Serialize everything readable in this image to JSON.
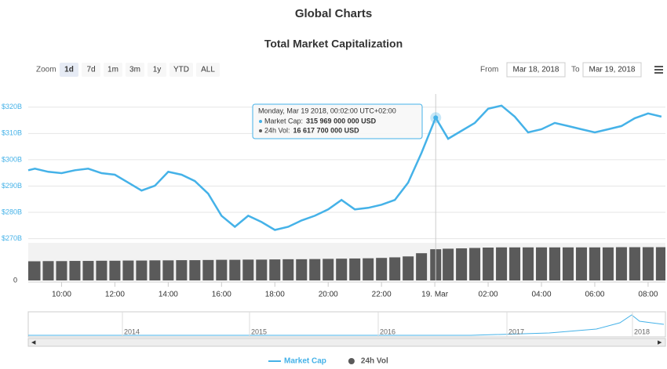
{
  "chart_data": {
    "type": "line",
    "title": "Global Charts",
    "subtitle": "Total Market Capitalization",
    "x": [
      8.75,
      9,
      9.5,
      10,
      10.5,
      11,
      11.5,
      12,
      12.5,
      13,
      13.5,
      14,
      14.5,
      15,
      15.5,
      16,
      16.5,
      17,
      17.5,
      18,
      18.5,
      19,
      19.5,
      20,
      20.5,
      21,
      21.5,
      22,
      22.5,
      23,
      23.5,
      24.033,
      24.5,
      25,
      25.5,
      26,
      26.5,
      27,
      27.5,
      28,
      28.5,
      29,
      29.5,
      30,
      30.5,
      31,
      31.5,
      32,
      32.5
    ],
    "xlim": [
      8.75,
      32.65
    ],
    "xticks": [
      {
        "value": 10,
        "label": "10:00"
      },
      {
        "value": 12,
        "label": "12:00"
      },
      {
        "value": 14,
        "label": "14:00"
      },
      {
        "value": 16,
        "label": "16:00"
      },
      {
        "value": 18,
        "label": "18:00"
      },
      {
        "value": 20,
        "label": "20:00"
      },
      {
        "value": 22,
        "label": "22:00"
      },
      {
        "value": 24,
        "label": "19. Mar"
      },
      {
        "value": 26,
        "label": "02:00"
      },
      {
        "value": 28,
        "label": "04:00"
      },
      {
        "value": 30,
        "label": "06:00"
      },
      {
        "value": 32,
        "label": "08:00"
      }
    ],
    "ylim": [
      266,
      325
    ],
    "yticks": [
      {
        "value": 270,
        "label": "$270B"
      },
      {
        "value": 280,
        "label": "$280B"
      },
      {
        "value": 290,
        "label": "$290B"
      },
      {
        "value": 300,
        "label": "$300B"
      },
      {
        "value": 310,
        "label": "$310B"
      },
      {
        "value": 320,
        "label": "$320B"
      }
    ],
    "y2lim": [
      0,
      20
    ],
    "y2ticks": [
      0
    ],
    "grid": true,
    "series": [
      {
        "name": "Market Cap",
        "color": "#45b2e8",
        "values": [
          296.0,
          296.6,
          295.4,
          294.9,
          296.0,
          296.6,
          294.9,
          294.3,
          291.3,
          288.3,
          290.1,
          295.4,
          294.3,
          291.9,
          287.1,
          278.7,
          274.5,
          278.7,
          276.3,
          273.3,
          274.5,
          276.9,
          278.7,
          281.1,
          284.7,
          281.1,
          281.7,
          282.9,
          284.7,
          291.3,
          302.6,
          315.969,
          308.0,
          311.0,
          314.0,
          319.4,
          320.6,
          316.4,
          310.4,
          311.6,
          314.0,
          312.8,
          311.6,
          310.4,
          311.6,
          312.8,
          315.8,
          317.6,
          316.4
        ]
      },
      {
        "name": "24h Vol",
        "color": "#5a5a5a",
        "axis": "y2",
        "values": [
          10.2,
          10.2,
          10.3,
          10.3,
          10.4,
          10.4,
          10.5,
          10.5,
          10.6,
          10.6,
          10.7,
          10.7,
          10.8,
          10.8,
          10.9,
          11.0,
          11.0,
          11.1,
          11.1,
          11.2,
          11.3,
          11.3,
          11.4,
          11.5,
          11.6,
          11.7,
          11.8,
          12.0,
          12.3,
          12.8,
          14.5,
          16.6177,
          16.9,
          17.1,
          17.3,
          17.5,
          17.6,
          17.6,
          17.6,
          17.6,
          17.6,
          17.6,
          17.6,
          17.6,
          17.6,
          17.7,
          17.7,
          17.7,
          17.7
        ]
      }
    ],
    "tooltip": {
      "title": "Monday, Mar 19 2018, 00:02:00 UTC+02:00",
      "items": [
        {
          "label": "Market Cap:",
          "text": "315 969 000 000 USD"
        },
        {
          "label": "24h Vol:",
          "text": "16 617 700 000 USD"
        }
      ]
    }
  },
  "controls": {
    "zoom_label": "Zoom",
    "buttons": [
      "1d",
      "7d",
      "1m",
      "3m",
      "1y",
      "YTD",
      "ALL"
    ],
    "from_label": "From",
    "from_value": "Mar 18, 2018",
    "to_label": "To",
    "to_value": "Mar 19, 2018"
  },
  "navigator": {
    "labels": [
      "2014",
      "2015",
      "2016",
      "2017",
      "2018"
    ]
  }
}
